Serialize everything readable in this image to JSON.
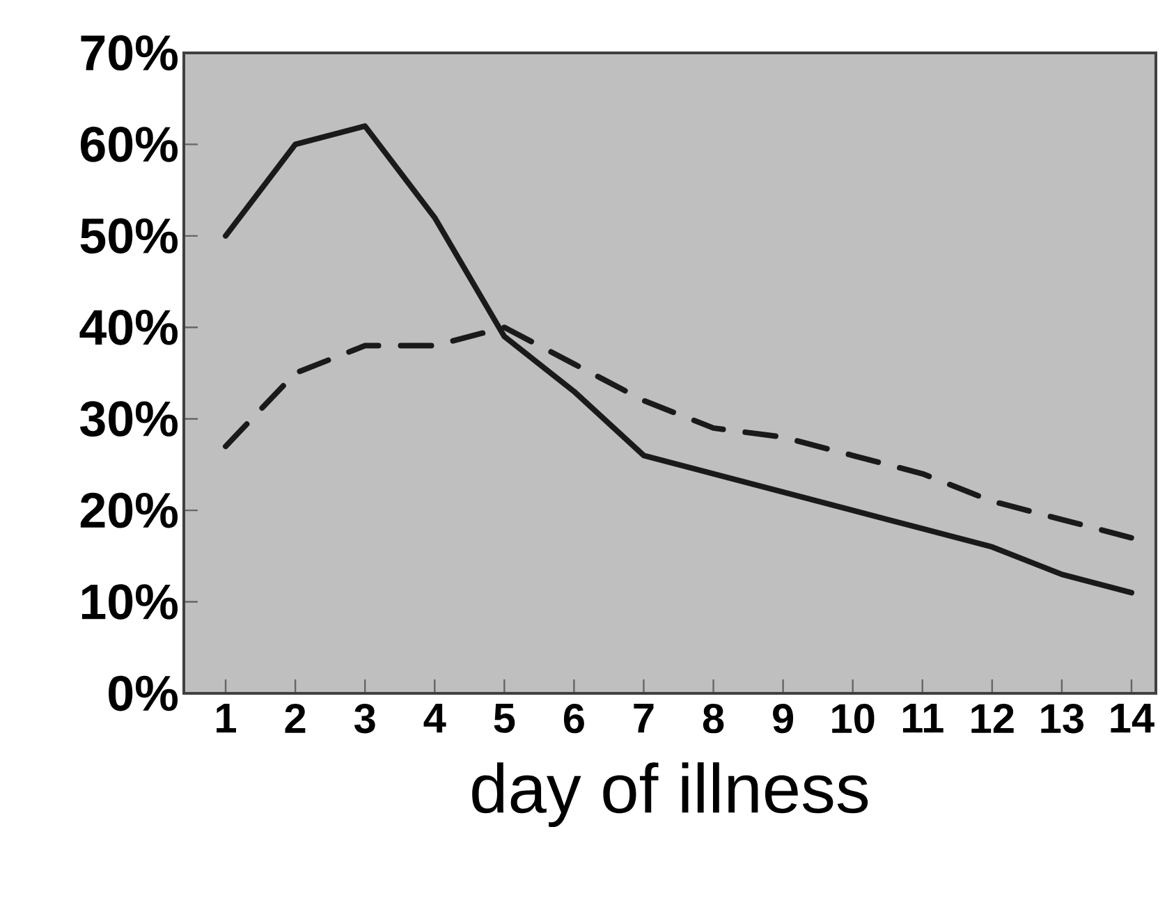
{
  "chart_data": {
    "type": "line",
    "xlabel": "day of illness",
    "x": [
      1,
      2,
      3,
      4,
      5,
      6,
      7,
      8,
      9,
      10,
      11,
      12,
      13,
      14
    ],
    "series": [
      {
        "color": "#1a1a1a",
        "line_style": "solid",
        "values": [
          50,
          60,
          62,
          52,
          39,
          33,
          26,
          24,
          22,
          20,
          18,
          16,
          13,
          11
        ]
      },
      {
        "color": "#1a1a1a",
        "line_style": "dashed",
        "values": [
          27,
          35,
          38,
          38,
          40,
          36,
          32,
          29,
          28,
          26,
          24,
          21,
          19,
          17
        ]
      }
    ],
    "xlim": [
      0.4,
      14.35
    ],
    "ylim": [
      0,
      70
    ],
    "xticks": [
      1,
      2,
      3,
      4,
      5,
      6,
      7,
      8,
      9,
      10,
      11,
      12,
      13,
      14
    ],
    "yticks": [
      {
        "value": 0,
        "label": "0%"
      },
      {
        "value": 10,
        "label": "10%"
      },
      {
        "value": 20,
        "label": "20%"
      },
      {
        "value": 30,
        "label": "30%"
      },
      {
        "value": 40,
        "label": "40%"
      },
      {
        "value": 50,
        "label": "50%"
      },
      {
        "value": 60,
        "label": "60%"
      },
      {
        "value": 70,
        "label": "70%"
      }
    ],
    "marker": "none"
  }
}
